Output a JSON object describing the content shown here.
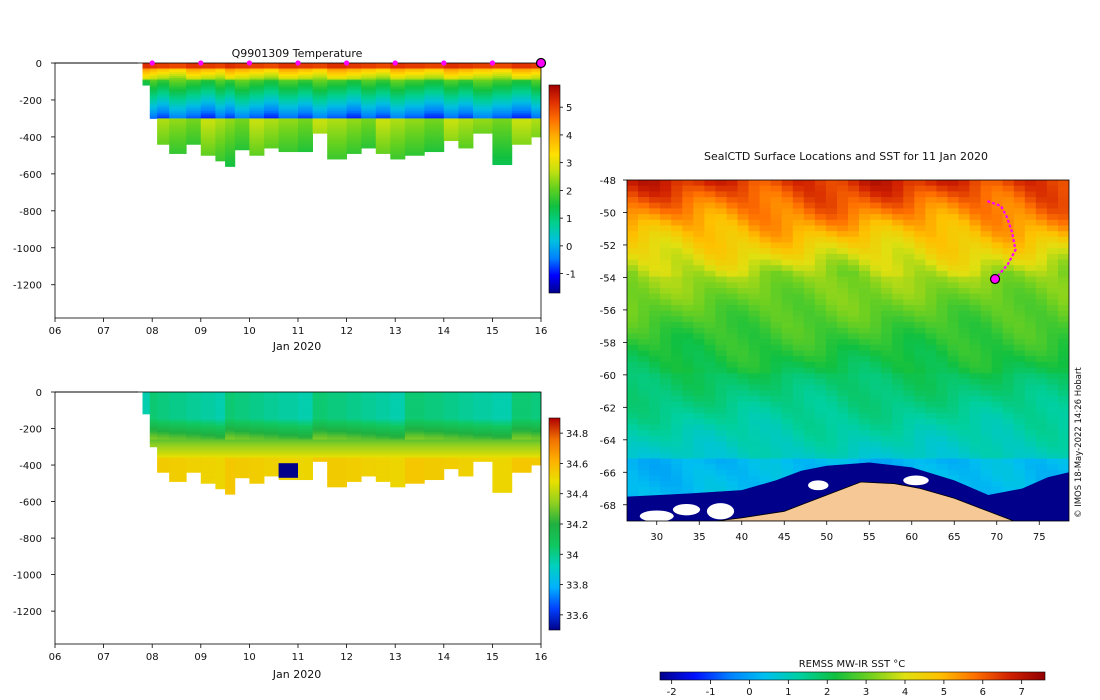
{
  "colors": {
    "temperature_scale": [
      "#00008b",
      "#0000ff",
      "#0080ff",
      "#00c0e0",
      "#00d090",
      "#10c040",
      "#60d020",
      "#c0e010",
      "#ffe000",
      "#ffb000",
      "#ff7000",
      "#e03000",
      "#a00000"
    ],
    "salinity_scale": [
      "#00008b",
      "#0040ff",
      "#00b0ff",
      "#00d0c0",
      "#10c860",
      "#20b040",
      "#90d020",
      "#e8e000",
      "#ffb000",
      "#f07000",
      "#b00000"
    ],
    "sst_scale": [
      "#00008b",
      "#0010ff",
      "#0080ff",
      "#00c0f0",
      "#00d0a0",
      "#10c040",
      "#70d020",
      "#e0e010",
      "#ffc000",
      "#ff7000",
      "#d02000",
      "#900000"
    ],
    "land": "#f5c896",
    "track": "#ff00ff"
  },
  "chart_data": [
    {
      "type": "heatmap",
      "title": "Q9901309  Temperature",
      "xlabel": "Jan 2020",
      "ylabel": "",
      "x_ticks": [
        "06",
        "07",
        "08",
        "09",
        "10",
        "11",
        "12",
        "13",
        "14",
        "15",
        "16"
      ],
      "x_range": [
        6,
        16
      ],
      "y_ticks": [
        0,
        -200,
        -400,
        -600,
        -800,
        -1000,
        -1200
      ],
      "y_range": [
        -1380,
        0
      ],
      "colorbar_ticks": [
        5,
        4,
        3,
        2,
        1,
        0,
        -1
      ],
      "colorbar_range": [
        -1.7,
        5.8
      ],
      "profile_markers": [
        8,
        9,
        10,
        11,
        12,
        13,
        14,
        15,
        16
      ],
      "profiles": [
        {
          "t": 7.8,
          "depth": 120
        },
        {
          "t": 7.95,
          "depth": 300
        },
        {
          "t": 8.1,
          "depth": 440
        },
        {
          "t": 8.35,
          "depth": 490
        },
        {
          "t": 8.7,
          "depth": 440
        },
        {
          "t": 9.0,
          "depth": 500
        },
        {
          "t": 9.3,
          "depth": 530
        },
        {
          "t": 9.5,
          "depth": 560
        },
        {
          "t": 9.7,
          "depth": 470
        },
        {
          "t": 10.0,
          "depth": 500
        },
        {
          "t": 10.3,
          "depth": 460
        },
        {
          "t": 10.6,
          "depth": 480
        },
        {
          "t": 11.0,
          "depth": 480
        },
        {
          "t": 11.3,
          "depth": 380
        },
        {
          "t": 11.6,
          "depth": 520
        },
        {
          "t": 12.0,
          "depth": 490
        },
        {
          "t": 12.3,
          "depth": 460
        },
        {
          "t": 12.6,
          "depth": 490
        },
        {
          "t": 12.9,
          "depth": 520
        },
        {
          "t": 13.2,
          "depth": 500
        },
        {
          "t": 13.6,
          "depth": 480
        },
        {
          "t": 14.0,
          "depth": 420
        },
        {
          "t": 14.3,
          "depth": 460
        },
        {
          "t": 14.6,
          "depth": 380
        },
        {
          "t": 15.0,
          "depth": 550
        },
        {
          "t": 15.4,
          "depth": 440
        },
        {
          "t": 15.8,
          "depth": 400
        }
      ]
    },
    {
      "type": "heatmap",
      "title": "",
      "xlabel": "Jan 2020",
      "ylabel": "",
      "x_ticks": [
        "06",
        "07",
        "08",
        "09",
        "10",
        "11",
        "12",
        "13",
        "14",
        "15",
        "16"
      ],
      "x_range": [
        6,
        16
      ],
      "y_ticks": [
        0,
        -200,
        -400,
        -600,
        -800,
        -1000,
        -1200
      ],
      "y_range": [
        -1380,
        0
      ],
      "colorbar_ticks": [
        34.8,
        34.6,
        34.4,
        34.2,
        34,
        33.8,
        33.6
      ],
      "colorbar_range": [
        33.5,
        34.9
      ],
      "profiles": [
        {
          "t": 7.8,
          "depth": 120
        },
        {
          "t": 7.95,
          "depth": 300
        },
        {
          "t": 8.1,
          "depth": 440
        },
        {
          "t": 8.35,
          "depth": 490
        },
        {
          "t": 8.7,
          "depth": 440
        },
        {
          "t": 9.0,
          "depth": 500
        },
        {
          "t": 9.3,
          "depth": 530
        },
        {
          "t": 9.5,
          "depth": 560
        },
        {
          "t": 9.7,
          "depth": 470
        },
        {
          "t": 10.0,
          "depth": 500
        },
        {
          "t": 10.3,
          "depth": 460
        },
        {
          "t": 10.6,
          "depth": 480
        },
        {
          "t": 11.0,
          "depth": 480
        },
        {
          "t": 11.3,
          "depth": 380
        },
        {
          "t": 11.6,
          "depth": 520
        },
        {
          "t": 12.0,
          "depth": 490
        },
        {
          "t": 12.3,
          "depth": 460
        },
        {
          "t": 12.6,
          "depth": 490
        },
        {
          "t": 12.9,
          "depth": 520
        },
        {
          "t": 13.2,
          "depth": 500
        },
        {
          "t": 13.6,
          "depth": 480
        },
        {
          "t": 14.0,
          "depth": 420
        },
        {
          "t": 14.3,
          "depth": 460
        },
        {
          "t": 14.6,
          "depth": 380
        },
        {
          "t": 15.0,
          "depth": 550
        },
        {
          "t": 15.4,
          "depth": 440
        },
        {
          "t": 15.8,
          "depth": 400
        }
      ]
    },
    {
      "type": "heatmap",
      "title": "SealCTD Surface Locations and SST for 11 Jan 2020",
      "xlabel": "",
      "ylabel": "",
      "x_ticks": [
        30,
        35,
        40,
        45,
        50,
        55,
        60,
        65,
        70,
        75
      ],
      "x_range": [
        26.5,
        78.5
      ],
      "y_ticks": [
        -48,
        -50,
        -52,
        -54,
        -56,
        -58,
        -60,
        -62,
        -64,
        -66,
        -68
      ],
      "y_range": [
        -69,
        -48
      ],
      "colorbar_title": "REMSS MW-IR SST °C",
      "colorbar_ticks": [
        -2,
        -1,
        0,
        1,
        2,
        3,
        4,
        5,
        6,
        7
      ],
      "colorbar_range": [
        -2.3,
        7.6
      ],
      "credit": "© IMOS 18-May-2022 14:26 Hobart",
      "track": [
        [
          68.9,
          -49.3
        ],
        [
          70.5,
          -49.6
        ],
        [
          71.2,
          -50.3
        ],
        [
          71.8,
          -51.2
        ],
        [
          72.2,
          -52.3
        ],
        [
          71.3,
          -53.2
        ],
        [
          70.3,
          -53.8
        ],
        [
          69.8,
          -54.1
        ]
      ],
      "current_position": [
        69.8,
        -54.1
      ]
    }
  ]
}
